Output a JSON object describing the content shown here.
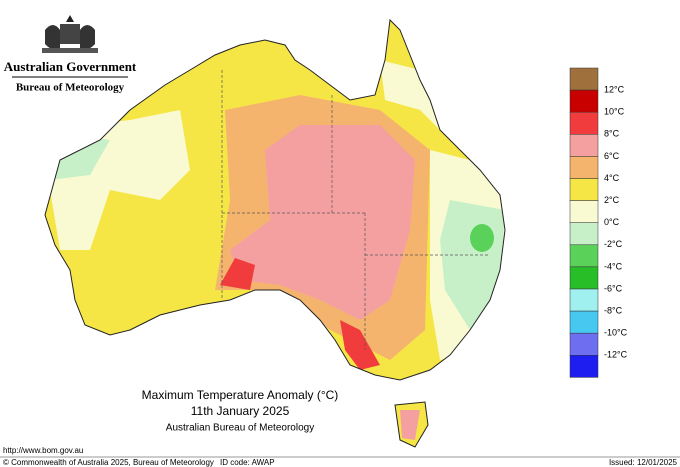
{
  "header": {
    "government": "Australian Government",
    "bureau": "Bureau of Meteorology"
  },
  "legend": {
    "labels": [
      "12°C",
      "10°C",
      "8°C",
      "6°C",
      "4°C",
      "2°C",
      "0°C",
      "-2°C",
      "-4°C",
      "-6°C",
      "-8°C",
      "-10°C",
      "-12°C"
    ],
    "colors": [
      "#a0703c",
      "#c80000",
      "#f03c3c",
      "#f5a0a0",
      "#f5b46e",
      "#f5e646",
      "#fafad2",
      "#c8f0c8",
      "#5ad25a",
      "#28be28",
      "#a0f0f0",
      "#46c8f0",
      "#6e6ef0",
      "#1e1ef0"
    ]
  },
  "title": {
    "line1": "Maximum Temperature Anomaly (°C)",
    "line2": "11th January 2025",
    "line3": "Australian Bureau of Meteorology"
  },
  "footer": {
    "url": "http://www.bom.gov.au",
    "copyright": "© Commonwealth of Australia 2025, Bureau of Meteorology",
    "id_code": "ID code: AWAP",
    "issued": "Issued: 12/01/2025"
  }
}
